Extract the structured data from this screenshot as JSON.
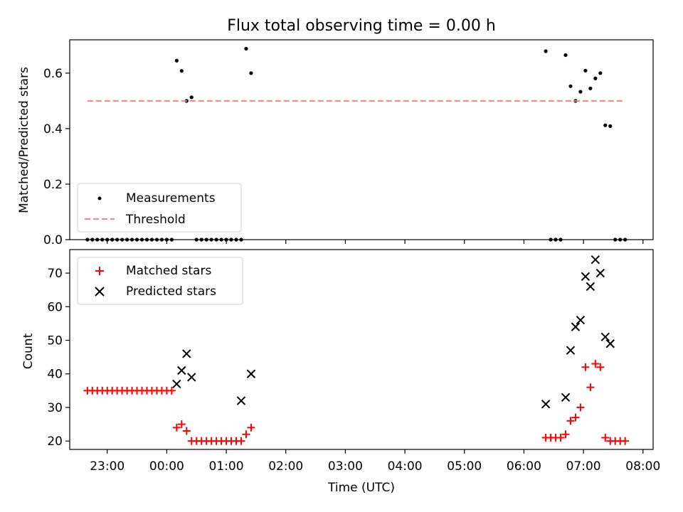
{
  "title": "Flux total observing time = 0.00 h",
  "chart_data": [
    {
      "type": "scatter",
      "ylabel": "Matched/Predicted stars",
      "ylim": [
        0,
        0.72
      ],
      "yticks": [
        0.0,
        0.2,
        0.4,
        0.6
      ],
      "ytick_labels": [
        "0.0",
        "0.2",
        "0.4",
        "0.6"
      ],
      "xlim_hours": [
        -1.63,
        8.17
      ],
      "legend_position": "lower-left",
      "grid": false,
      "series": [
        {
          "name": "Measurements",
          "marker": "dot",
          "color": "#000000",
          "x": [
            "22:40",
            "22:45",
            "22:50",
            "22:55",
            "23:00",
            "23:05",
            "23:10",
            "23:15",
            "23:20",
            "23:25",
            "23:30",
            "23:35",
            "23:40",
            "23:45",
            "23:50",
            "23:55",
            "00:00",
            "00:05",
            "00:10",
            "00:15",
            "00:20",
            "00:25",
            "00:30",
            "00:35",
            "00:40",
            "00:45",
            "00:50",
            "00:55",
            "01:00",
            "01:05",
            "01:10",
            "01:15",
            "01:20",
            "01:25",
            "06:22",
            "06:27",
            "06:32",
            "06:37",
            "06:42",
            "06:47",
            "06:52",
            "06:57",
            "07:02",
            "07:07",
            "07:12",
            "07:17",
            "07:22",
            "07:27",
            "07:32",
            "07:37",
            "07:42"
          ],
          "values": [
            0,
            0,
            0,
            0,
            0,
            0,
            0,
            0,
            0,
            0,
            0,
            0,
            0,
            0,
            0,
            0,
            0,
            0,
            0.645,
            0.608,
            0.5,
            0.513,
            0,
            0,
            0,
            0,
            0,
            0,
            0,
            0,
            0,
            0,
            0.688,
            0.6,
            0.679,
            0,
            0,
            0,
            0.665,
            0.553,
            0.5,
            0.533,
            0.609,
            0.545,
            0.581,
            0.6,
            0.412,
            0.409,
            0,
            0,
            0
          ]
        },
        {
          "name": "Threshold",
          "marker": "dashed-line",
          "color": "#ff8080",
          "x": [
            "22:40",
            "07:42"
          ],
          "values": [
            0.5,
            0.5
          ]
        }
      ]
    },
    {
      "type": "scatter",
      "ylabel": "Count",
      "xlabel": "Time (UTC)",
      "ylim": [
        17.5,
        77
      ],
      "yticks": [
        20,
        30,
        40,
        50,
        60,
        70
      ],
      "ytick_labels": [
        "20",
        "30",
        "40",
        "50",
        "60",
        "70"
      ],
      "xticks": [
        "23:00",
        "00:00",
        "01:00",
        "02:00",
        "03:00",
        "04:00",
        "05:00",
        "06:00",
        "07:00",
        "08:00"
      ],
      "xlim_hours": [
        -1.63,
        8.17
      ],
      "legend_position": "upper-left",
      "grid": false,
      "series": [
        {
          "name": "Matched stars",
          "marker": "plus",
          "color": "#ff0000",
          "x": [
            "22:40",
            "22:45",
            "22:50",
            "22:55",
            "23:00",
            "23:05",
            "23:10",
            "23:15",
            "23:20",
            "23:25",
            "23:30",
            "23:35",
            "23:40",
            "23:45",
            "23:50",
            "23:55",
            "00:00",
            "00:05",
            "00:10",
            "00:15",
            "00:20",
            "00:25",
            "00:30",
            "00:35",
            "00:40",
            "00:45",
            "00:50",
            "00:55",
            "01:00",
            "01:05",
            "01:10",
            "01:15",
            "01:20",
            "01:25",
            "06:22",
            "06:27",
            "06:32",
            "06:37",
            "06:42",
            "06:47",
            "06:52",
            "06:57",
            "07:02",
            "07:07",
            "07:12",
            "07:17",
            "07:22",
            "07:27",
            "07:32",
            "07:37",
            "07:42"
          ],
          "values": [
            35,
            35,
            35,
            35,
            35,
            35,
            35,
            35,
            35,
            35,
            35,
            35,
            35,
            35,
            35,
            35,
            35,
            35,
            24,
            25,
            23,
            20,
            20,
            20,
            20,
            20,
            20,
            20,
            20,
            20,
            20,
            20,
            22,
            24,
            21,
            21,
            21,
            21,
            22,
            26,
            27,
            30,
            42,
            36,
            43,
            42,
            21,
            20,
            20,
            20,
            20
          ]
        },
        {
          "name": "Predicted stars",
          "marker": "x",
          "color": "#000000",
          "x": [
            "00:10",
            "00:15",
            "00:20",
            "00:25",
            "01:15",
            "01:25",
            "06:22",
            "06:42",
            "06:47",
            "06:52",
            "06:57",
            "07:02",
            "07:07",
            "07:12",
            "07:17",
            "07:22",
            "07:27"
          ],
          "values": [
            37,
            41,
            46,
            39,
            32,
            40,
            31,
            33,
            47,
            54,
            56,
            69,
            66,
            74,
            70,
            51,
            49
          ]
        }
      ]
    }
  ]
}
